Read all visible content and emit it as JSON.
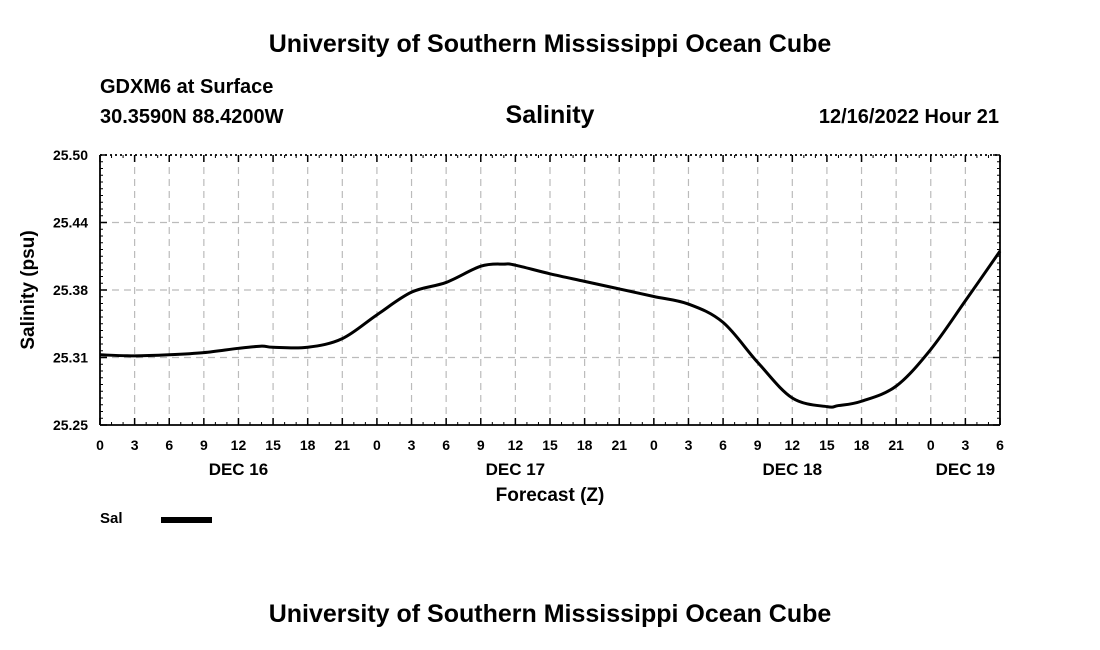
{
  "header": {
    "main_title": "University of Southern Mississippi Ocean Cube",
    "station": "GDXM6 at Surface",
    "coords": "30.3590N  88.4200W",
    "datetime": "12/16/2022 Hour 21",
    "footer_title": "University of Southern Mississippi Ocean Cube"
  },
  "legend": {
    "label": "Sal"
  },
  "colors": {
    "line": "#000000",
    "grid": "#bbbbbb",
    "axis": "#000000"
  },
  "chart_data": {
    "type": "line",
    "title": "Salinity",
    "xlabel": "Forecast (Z)",
    "ylabel": "Salinity (psu)",
    "ylim": [
      25.25,
      25.5
    ],
    "yticks": [
      "25.50",
      "25.44",
      "25.38",
      "25.31",
      "25.25"
    ],
    "xlim": [
      0,
      78
    ],
    "xticks": [
      "0",
      "3",
      "6",
      "9",
      "12",
      "15",
      "18",
      "21",
      "0",
      "3",
      "6",
      "9",
      "12",
      "15",
      "18",
      "21",
      "0",
      "3",
      "6",
      "9",
      "12",
      "15",
      "18",
      "21",
      "0",
      "3",
      "6"
    ],
    "date_labels": [
      {
        "label": "DEC 16",
        "hour": 12
      },
      {
        "label": "DEC 17",
        "hour": 36
      },
      {
        "label": "DEC 18",
        "hour": 60
      },
      {
        "label": "DEC 19",
        "hour": 75
      }
    ],
    "series": [
      {
        "name": "Sal",
        "x": [
          0,
          3,
          6,
          9,
          12,
          14,
          15,
          18,
          21,
          24,
          27,
          30,
          33,
          35,
          36,
          39,
          42,
          45,
          48,
          51,
          54,
          57,
          60,
          63,
          64,
          66,
          69,
          72,
          75,
          78
        ],
        "y": [
          25.315,
          25.314,
          25.315,
          25.317,
          25.321,
          25.323,
          25.322,
          25.322,
          25.33,
          25.352,
          25.373,
          25.382,
          25.397,
          25.399,
          25.398,
          25.39,
          25.383,
          25.376,
          25.369,
          25.362,
          25.345,
          25.308,
          25.275,
          25.267,
          25.268,
          25.272,
          25.286,
          25.32,
          25.365,
          25.411
        ]
      }
    ]
  }
}
